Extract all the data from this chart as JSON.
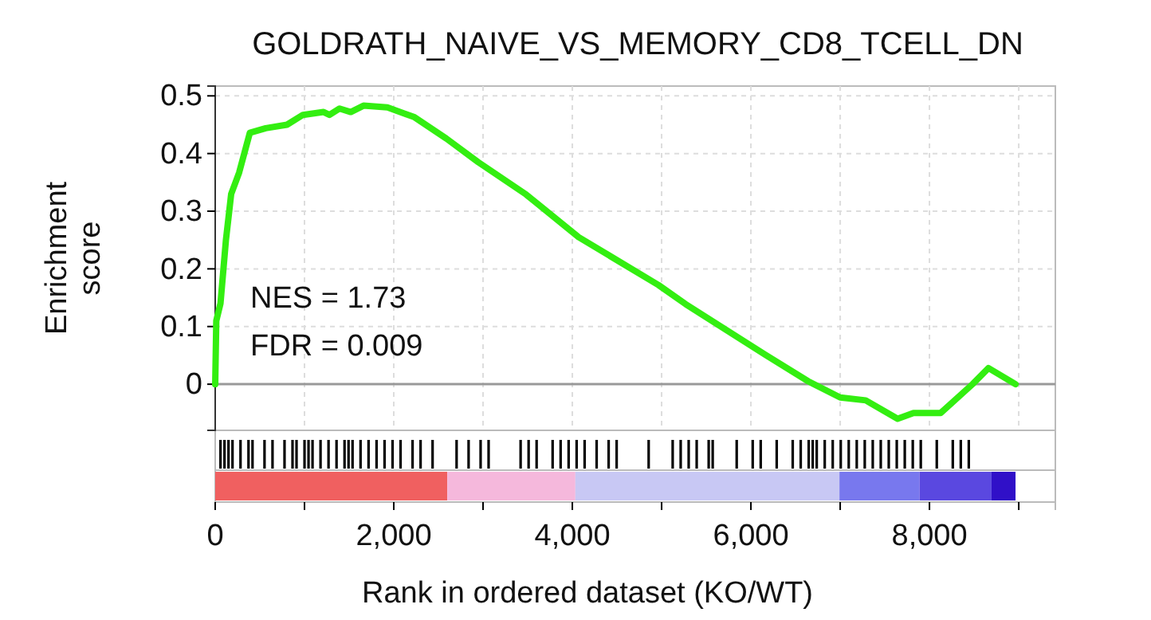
{
  "chart_data": {
    "type": "line",
    "title": "GOLDRATH_NAIVE_VS_MEMORY_CD8_TCELL_DN",
    "xlabel": "Rank in ordered dataset (KO/WT)",
    "ylabel": "Enrichment score",
    "annotations": [
      "NES = 1.73",
      "FDR = 0.009"
    ],
    "xlim": [
      0,
      9410
    ],
    "ylim": [
      -0.08,
      0.517
    ],
    "xticks": [
      0,
      {
        "value": 1000,
        "label": null
      },
      {
        "value": 2000,
        "label": "2,000"
      },
      {
        "value": 3000,
        "label": null
      },
      {
        "value": 4000,
        "label": "4,000"
      },
      {
        "value": 5000,
        "label": null
      },
      {
        "value": 6000,
        "label": "6,000"
      },
      {
        "value": 7000,
        "label": null
      },
      {
        "value": 8000,
        "label": "8,000"
      },
      {
        "value": 9000,
        "label": null
      }
    ],
    "yticks": [
      0,
      0.1,
      0.2,
      0.3,
      0.4,
      0.5
    ],
    "grid": true,
    "line_style": "solid",
    "marker": "none",
    "ref_lines": [
      {
        "axis": "y",
        "value": 0,
        "color": "#999999"
      }
    ],
    "series": [
      {
        "color": "#33ee11",
        "x": [
          0,
          12,
          59,
          120,
          179,
          268,
          388,
          566,
          804,
          982,
          1214,
          1280,
          1393,
          1518,
          1661,
          1929,
          2232,
          2589,
          2946,
          3482,
          4071,
          4964,
          5268,
          6161,
          6643,
          7000,
          7286,
          7643,
          7821,
          8125,
          8482,
          8661,
          8964
        ],
        "values": [
          0,
          0.11,
          0.14,
          0.25,
          0.33,
          0.367,
          0.436,
          0.444,
          0.45,
          0.467,
          0.472,
          0.467,
          0.478,
          0.472,
          0.483,
          0.48,
          0.463,
          0.426,
          0.385,
          0.329,
          0.255,
          0.172,
          0.139,
          0.051,
          0.005,
          -0.023,
          -0.028,
          -0.06,
          -0.05,
          -0.05,
          0,
          0.028,
          0
        ]
      }
    ]
  }
}
